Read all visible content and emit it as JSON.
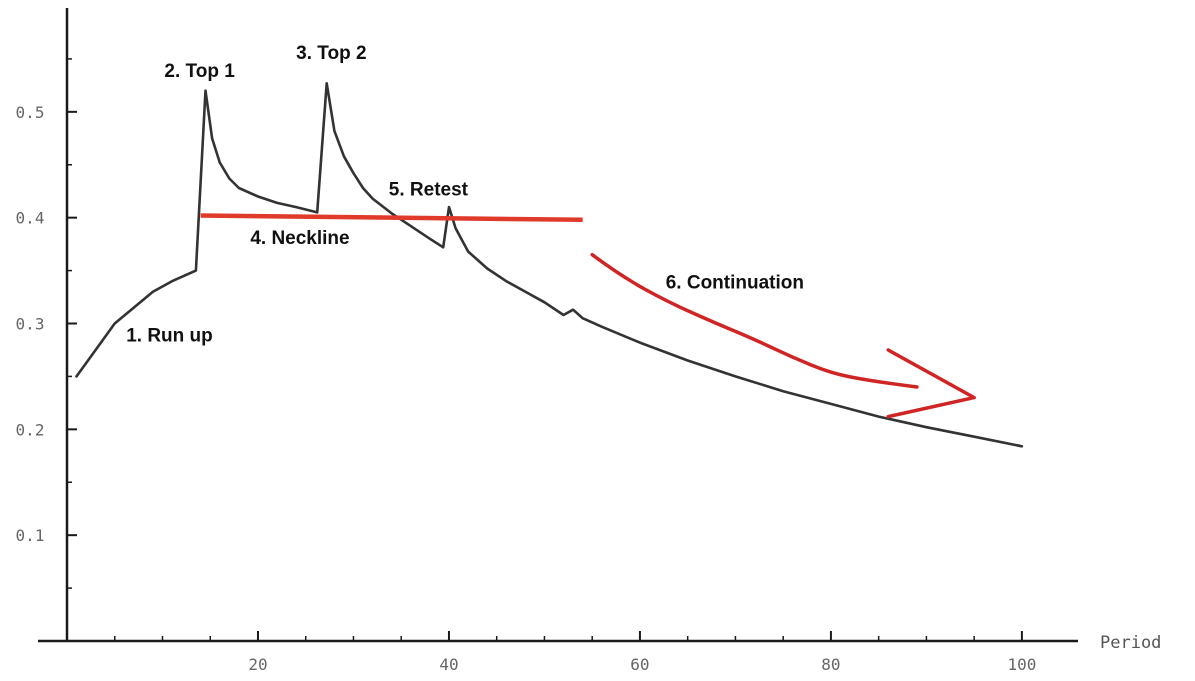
{
  "chart_data": {
    "type": "line",
    "xlabel": "Period",
    "ylabel": "",
    "xlim": [
      0,
      102
    ],
    "ylim": [
      0,
      0.6
    ],
    "x_ticks": [
      20,
      40,
      60,
      80,
      100
    ],
    "y_ticks": [
      0.1,
      0.2,
      0.3,
      0.4,
      0.5
    ],
    "grid": false,
    "series": [
      {
        "color": "#333333",
        "points": [
          [
            1,
            0.25
          ],
          [
            3,
            0.275
          ],
          [
            5,
            0.3
          ],
          [
            7,
            0.315
          ],
          [
            9,
            0.33
          ],
          [
            11,
            0.34
          ],
          [
            13,
            0.348
          ],
          [
            13.5,
            0.35
          ],
          [
            14.5,
            0.52
          ],
          [
            15.2,
            0.475
          ],
          [
            16,
            0.452
          ],
          [
            17,
            0.437
          ],
          [
            18,
            0.428
          ],
          [
            20,
            0.42
          ],
          [
            22,
            0.414
          ],
          [
            24,
            0.41
          ],
          [
            26.2,
            0.405
          ],
          [
            27.2,
            0.527
          ],
          [
            28,
            0.482
          ],
          [
            29,
            0.458
          ],
          [
            30,
            0.442
          ],
          [
            31,
            0.428
          ],
          [
            32,
            0.418
          ],
          [
            34,
            0.404
          ],
          [
            36,
            0.392
          ],
          [
            38,
            0.38
          ],
          [
            39.4,
            0.372
          ],
          [
            40,
            0.41
          ],
          [
            40.7,
            0.39
          ],
          [
            42,
            0.368
          ],
          [
            44,
            0.352
          ],
          [
            46,
            0.34
          ],
          [
            48,
            0.33
          ],
          [
            50,
            0.32
          ],
          [
            52,
            0.308
          ],
          [
            53,
            0.313
          ],
          [
            54,
            0.305
          ],
          [
            56,
            0.297
          ],
          [
            60,
            0.282
          ],
          [
            65,
            0.265
          ],
          [
            70,
            0.25
          ],
          [
            75,
            0.236
          ],
          [
            80,
            0.224
          ],
          [
            85,
            0.212
          ],
          [
            90,
            0.202
          ],
          [
            95,
            0.193
          ],
          [
            100,
            0.184
          ]
        ]
      }
    ],
    "neckline": {
      "color": "#e03a2a",
      "x": [
        14,
        54
      ],
      "y": [
        0.402,
        0.398
      ]
    },
    "continuation_arrow": {
      "color": "#d02525",
      "points": [
        [
          55,
          0.365
        ],
        [
          58,
          0.345
        ],
        [
          63,
          0.32
        ],
        [
          68,
          0.3
        ],
        [
          72,
          0.285
        ],
        [
          76,
          0.268
        ],
        [
          80,
          0.253
        ],
        [
          84,
          0.246
        ],
        [
          89,
          0.24
        ]
      ],
      "head": [
        [
          86,
          0.275
        ],
        [
          95,
          0.23
        ],
        [
          86,
          0.212
        ]
      ]
    },
    "annotations": [
      {
        "text": "1. Run up",
        "x": 6.2,
        "y": 0.283
      },
      {
        "text": "2. Top 1",
        "x": 10.2,
        "y": 0.533
      },
      {
        "text": "3. Top 2",
        "x": 24.0,
        "y": 0.55
      },
      {
        "text": "4. Neckline",
        "x": 19.2,
        "y": 0.375
      },
      {
        "text": "5. Retest",
        "x": 33.7,
        "y": 0.421
      },
      {
        "text": "6. Continuation",
        "x": 62.7,
        "y": 0.333
      }
    ]
  }
}
